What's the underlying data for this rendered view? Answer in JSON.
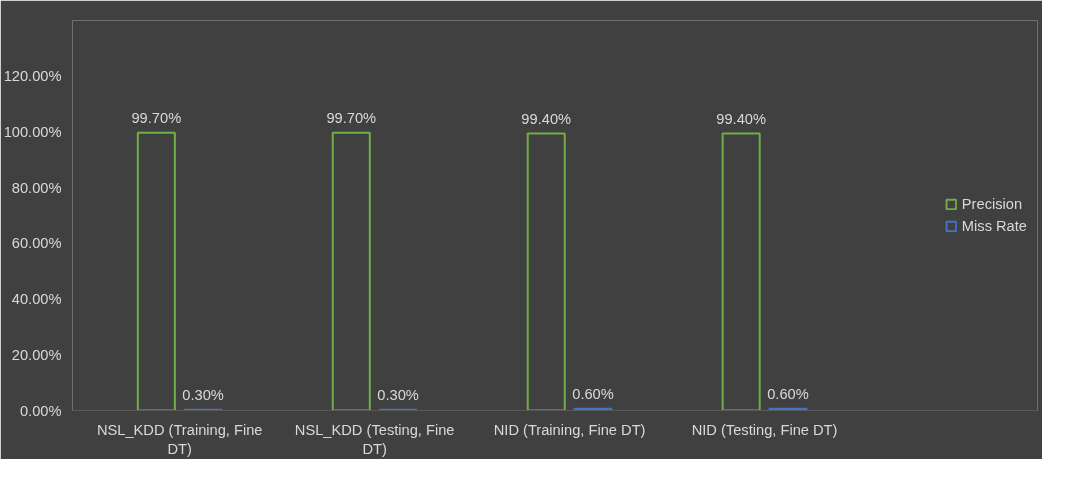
{
  "chart_data": {
    "type": "bar",
    "categories": [
      "NSL_KDD (Training, Fine DT)",
      "NSL_KDD (Testing, Fine DT)",
      "NID (Training, Fine DT)",
      "NID (Testing, Fine DT)"
    ],
    "series": [
      {
        "name": "Precision",
        "color": "#70ad47",
        "values": [
          99.7,
          99.7,
          99.4,
          99.4
        ],
        "value_labels": [
          "99.70%",
          "99.70%",
          "99.40%",
          "99.40%"
        ]
      },
      {
        "name": "Miss Rate",
        "color": "#4472c4",
        "values": [
          0.3,
          0.3,
          0.6,
          0.6
        ],
        "value_labels": [
          "0.30%",
          "0.30%",
          "0.60%",
          "0.60%"
        ]
      }
    ],
    "ylim": [
      0,
      140
    ],
    "yticks": [
      {
        "value": 0,
        "label": "0.00%"
      },
      {
        "value": 20,
        "label": "20.00%"
      },
      {
        "value": 40,
        "label": "40.00%"
      },
      {
        "value": 60,
        "label": "60.00%"
      },
      {
        "value": 80,
        "label": "80.00%"
      },
      {
        "value": 100,
        "label": "100.00%"
      },
      {
        "value": 120,
        "label": "120.00%"
      }
    ],
    "grid": false,
    "legend": "right"
  }
}
